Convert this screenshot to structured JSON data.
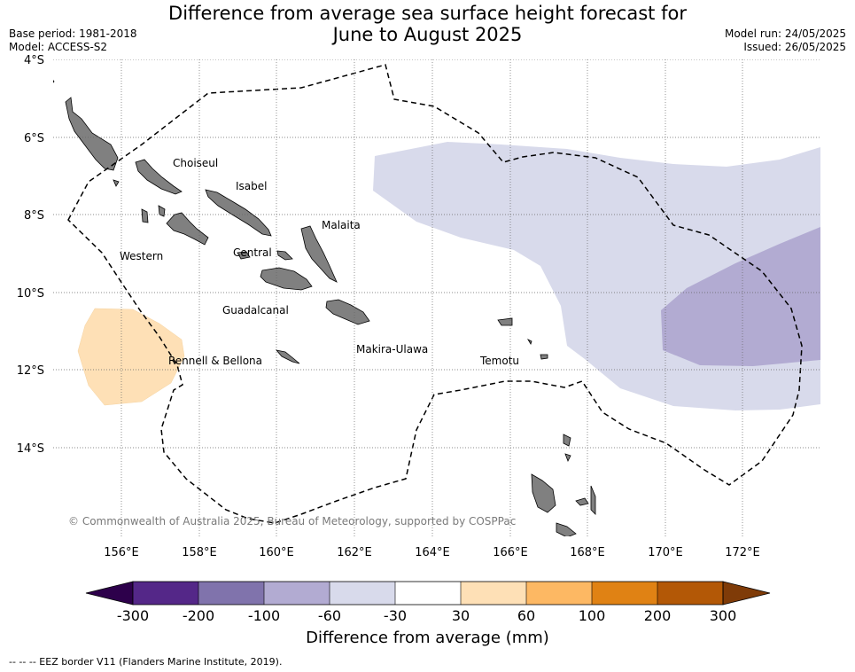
{
  "title_line1": "Difference from average sea surface height forecast for",
  "title_line2": "June to August 2025",
  "base_period": "Base period: 1981-2018",
  "model": "Model: ACCESS-S2",
  "model_run": "Model run: 24/05/2025",
  "issued": "Issued: 26/05/2025",
  "lat_labels": [
    "4°S",
    "6°S",
    "8°S",
    "10°S",
    "12°S",
    "14°S"
  ],
  "lon_labels": [
    "156°E",
    "158°E",
    "160°E",
    "162°E",
    "164°E",
    "166°E",
    "168°E",
    "170°E",
    "172°E"
  ],
  "province_labels": [
    "Choiseul",
    "Isabel",
    "Malaita",
    "Western",
    "Central",
    "Guadalcanal",
    "Rennell & Bellona",
    "Makira-Ulawa",
    "Temotu"
  ],
  "copyright": "© Commonwealth of Australia 2025, Bureau of Meteorology, supported by COSPPac",
  "colorbar": {
    "tick_labels": [
      "-300",
      "-200",
      "-100",
      "-60",
      "-30",
      "30",
      "60",
      "100",
      "200",
      "300"
    ],
    "colors": [
      "#2d004b",
      "#542788",
      "#8073ac",
      "#b2abd2",
      "#d8daeb",
      "#ffffff",
      "#fee0b6",
      "#fdb863",
      "#e08214",
      "#b35806",
      "#7f3b08"
    ],
    "title": "Difference from average (mm)"
  },
  "footnote": "--  --  -- EEZ border V11 (Flanders Marine Institute, 2019).",
  "colors": {
    "land": "#808080",
    "light_purple": "#d8daeb",
    "mid_purple": "#b2abd2",
    "light_orange": "#fee0b6"
  }
}
